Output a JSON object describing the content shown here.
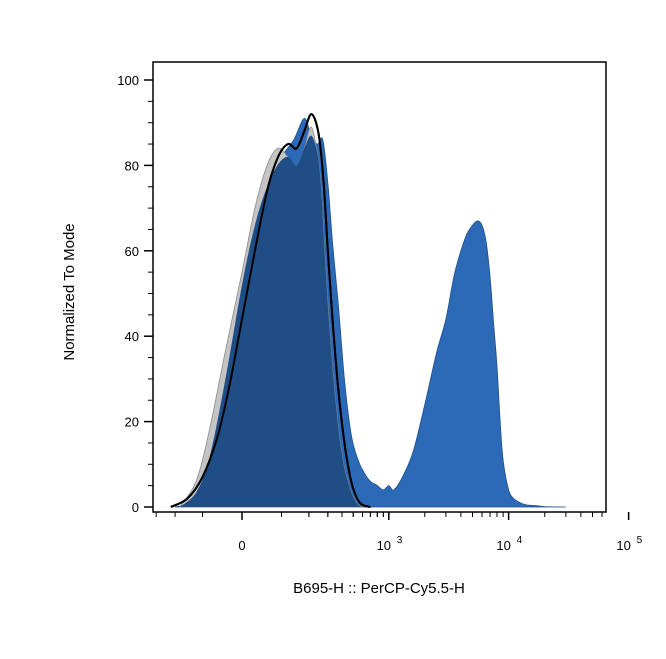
{
  "chart_data": {
    "type": "area",
    "title": "",
    "xlabel": "B695-H :: PerCP-Cy5.5-H",
    "ylabel": "Normalized To Mode",
    "x_scale": "biexponential",
    "ylim": [
      0,
      100
    ],
    "grid": false,
    "x_ticks": [
      {
        "value": 0,
        "label": "0",
        "exp": ""
      },
      {
        "value": 1000,
        "label": "10",
        "exp": "3"
      },
      {
        "value": 10000,
        "label": "10",
        "exp": "4"
      },
      {
        "value": 100000,
        "label": "10",
        "exp": "5"
      }
    ],
    "y_ticks": [
      {
        "value": 0,
        "label": "0"
      },
      {
        "value": 20,
        "label": "20"
      },
      {
        "value": 40,
        "label": "40"
      },
      {
        "value": 60,
        "label": "60"
      },
      {
        "value": 80,
        "label": "80"
      },
      {
        "value": 100,
        "label": "100"
      }
    ],
    "series": [
      {
        "style": "filled-blue",
        "color": "#2c6ab8",
        "x": [
          -200,
          -150,
          -100,
          -60,
          -30,
          0,
          30,
          60,
          100,
          140,
          180,
          210,
          240,
          270,
          300,
          330,
          370,
          420,
          480,
          550,
          620,
          700,
          800,
          900,
          1000,
          1100,
          1300,
          1600,
          2000,
          2500,
          3000,
          3500,
          4000,
          4500,
          5000,
          5500,
          6000,
          6500,
          7000,
          7500,
          8000,
          8500,
          9000,
          10000,
          11000,
          12500,
          14000,
          17000,
          20000,
          30000
        ],
        "y": [
          0,
          1,
          5,
          18,
          35,
          52,
          66,
          75,
          82,
          86,
          91,
          87,
          85,
          86,
          76,
          62,
          48,
          30,
          17,
          11,
          8,
          6,
          5,
          4,
          5,
          4,
          7,
          13,
          24,
          36,
          44,
          54,
          60,
          64,
          66,
          67,
          66,
          62,
          54,
          43,
          33,
          20,
          11,
          4,
          2,
          1,
          0.5,
          0.3,
          0.1,
          0
        ]
      },
      {
        "style": "filled-gray",
        "color": "#c4c4c4",
        "x": [
          -180,
          -120,
          -80,
          -40,
          0,
          30,
          60,
          90,
          120,
          150,
          180,
          210,
          240,
          260,
          280,
          310,
          350,
          400,
          460,
          530,
          600
        ],
        "y": [
          0,
          6,
          18,
          36,
          55,
          70,
          80,
          84,
          82,
          80,
          84,
          89,
          83,
          75,
          60,
          42,
          25,
          12,
          5,
          1,
          0
        ]
      },
      {
        "style": "outline-black",
        "color": "#000000",
        "x": [
          -220,
          -150,
          -100,
          -60,
          -30,
          0,
          30,
          60,
          90,
          120,
          150,
          180,
          210,
          240,
          260,
          280,
          300,
          330,
          370,
          420,
          480,
          540,
          600,
          700
        ],
        "y": [
          0,
          2,
          7,
          16,
          28,
          44,
          60,
          74,
          82,
          85,
          84,
          88,
          92,
          89,
          83,
          73,
          60,
          44,
          28,
          15,
          6,
          2,
          0.5,
          0
        ]
      }
    ]
  }
}
